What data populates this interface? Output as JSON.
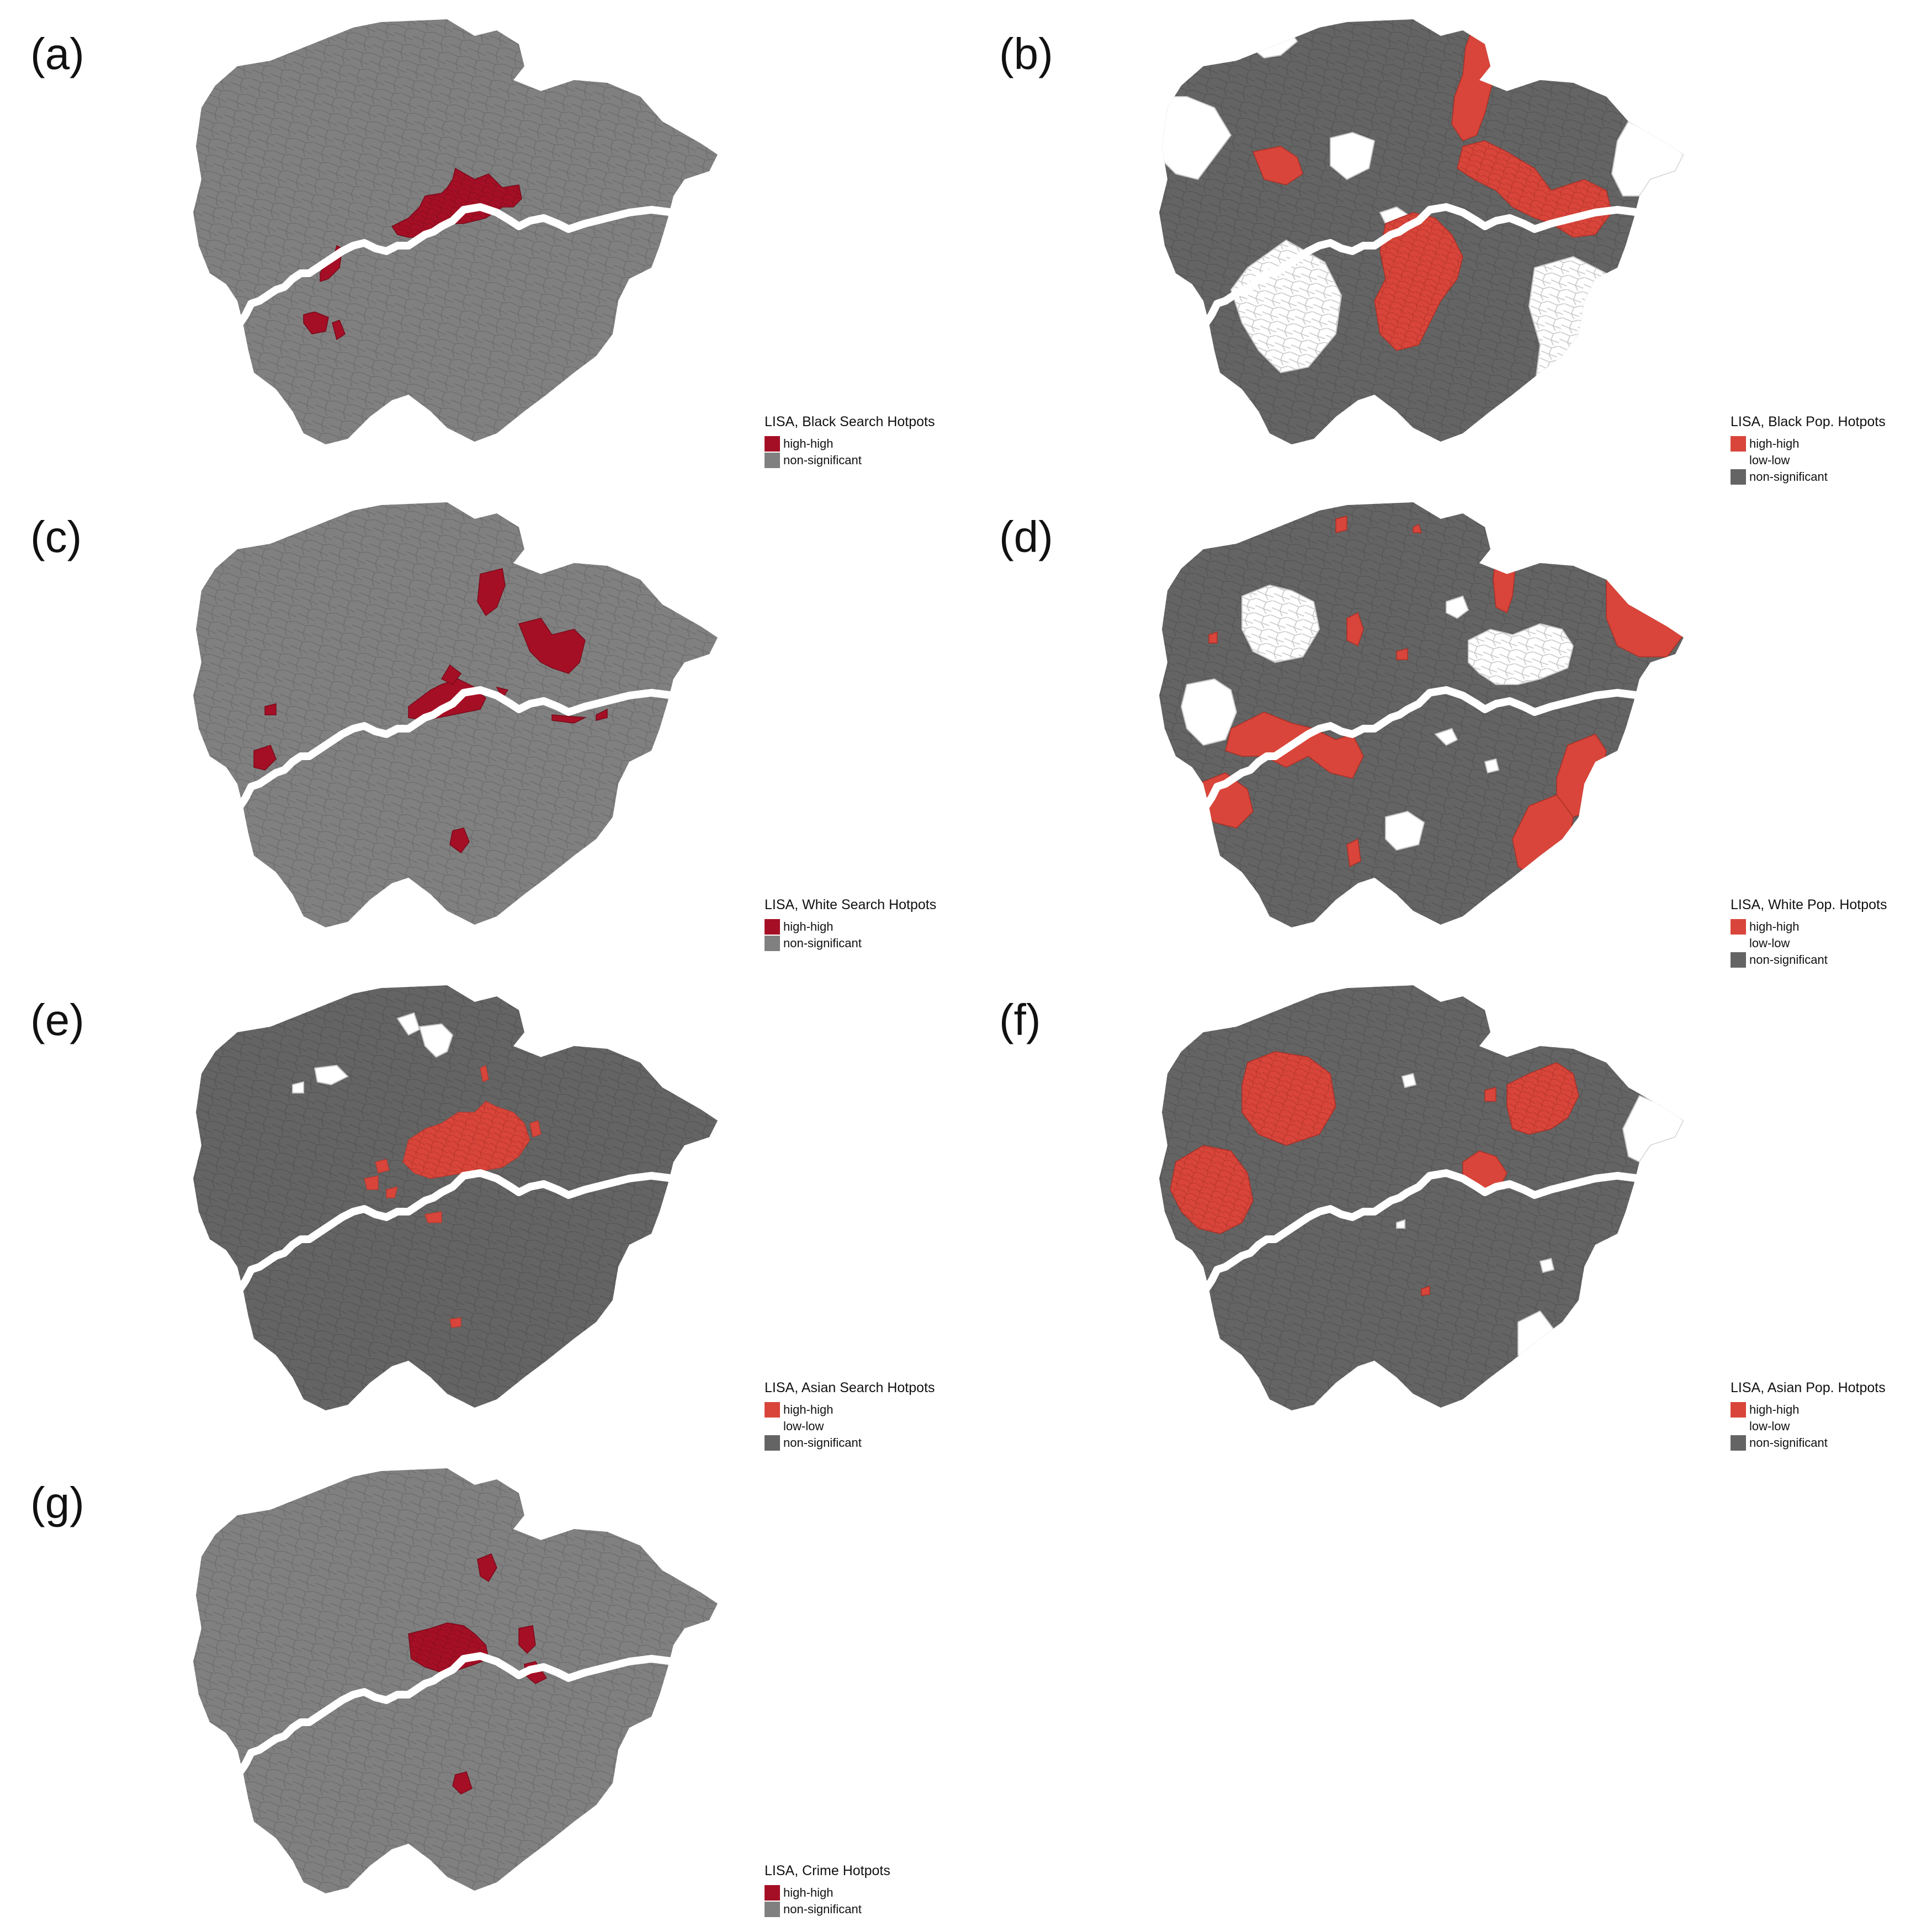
{
  "colors": {
    "search_high_high": "#a50f25",
    "pop_high_high": "#d9453a",
    "low_low": "#ffffff",
    "non_significant_light": "#808080",
    "non_significant_dark": "#646464",
    "river": "#ffffff",
    "boundary_light": "#6d6d6d",
    "boundary_dark": "#555555",
    "low_low_boundary": "#c8c8c8"
  },
  "panels": {
    "a": {
      "label": "(a)",
      "legend_title": "LISA, Black Search Hotpots",
      "legend": [
        {
          "label": "high-high",
          "color": "#a50f25"
        },
        {
          "label": "non-significant",
          "color": "#808080"
        }
      ]
    },
    "b": {
      "label": "(b)",
      "legend_title": "LISA, Black Pop. Hotpots",
      "legend": [
        {
          "label": "high-high",
          "color": "#d9453a"
        },
        {
          "label": "low-low",
          "color": "#ffffff"
        },
        {
          "label": "non-significant",
          "color": "#646464"
        }
      ]
    },
    "c": {
      "label": "(c)",
      "legend_title": "LISA, White Search Hotpots",
      "legend": [
        {
          "label": "high-high",
          "color": "#a50f25"
        },
        {
          "label": "non-significant",
          "color": "#808080"
        }
      ]
    },
    "d": {
      "label": "(d)",
      "legend_title": "LISA, White Pop. Hotpots",
      "legend": [
        {
          "label": "high-high",
          "color": "#d9453a"
        },
        {
          "label": "low-low",
          "color": "#ffffff"
        },
        {
          "label": "non-significant",
          "color": "#646464"
        }
      ]
    },
    "e": {
      "label": "(e)",
      "legend_title": "LISA, Asian Search Hotpots",
      "legend": [
        {
          "label": "high-high",
          "color": "#d9453a"
        },
        {
          "label": "low-low",
          "color": "#ffffff"
        },
        {
          "label": "non-significant",
          "color": "#646464"
        }
      ]
    },
    "f": {
      "label": "(f)",
      "legend_title": "LISA, Asian Pop. Hotpots",
      "legend": [
        {
          "label": "high-high",
          "color": "#d9453a"
        },
        {
          "label": "low-low",
          "color": "#ffffff"
        },
        {
          "label": "non-significant",
          "color": "#646464"
        }
      ]
    },
    "g": {
      "label": "(g)",
      "legend_title": "LISA, Crime Hotpots",
      "legend": [
        {
          "label": "high-high",
          "color": "#a50f25"
        },
        {
          "label": "non-significant",
          "color": "#808080"
        }
      ]
    }
  }
}
